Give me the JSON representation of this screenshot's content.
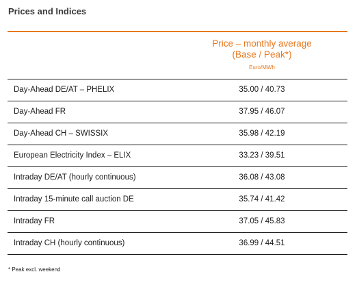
{
  "title": "Prices and Indices",
  "header": {
    "line1": "Price – monthly average",
    "line2": "(Base / Peak*)",
    "unit": "Euro/MWh"
  },
  "rows": [
    {
      "label": "Day-Ahead DE/AT – PHELIX",
      "value": "35.00 / 40.73"
    },
    {
      "label": "Day-Ahead FR",
      "value": "37.95 / 46.07"
    },
    {
      "label": "Day-Ahead CH – SWISSIX",
      "value": "35.98 / 42.19"
    },
    {
      "label": "European Electricity Index – ELIX",
      "value": "33.23 / 39.51"
    },
    {
      "label": "Intraday DE/AT (hourly continuous)",
      "value": "36.08 / 43.08"
    },
    {
      "label": "Intraday 15-minute call auction DE",
      "value": "35.74 / 41.42"
    },
    {
      "label": "Intraday FR",
      "value": "37.05 / 45.83"
    },
    {
      "label": "Intraday CH (hourly continuous)",
      "value": "36.99 / 44.51"
    }
  ],
  "footnote": "* Peak excl. weekend",
  "colors": {
    "accent": "#e8781e",
    "text": "#1a1a1a"
  }
}
